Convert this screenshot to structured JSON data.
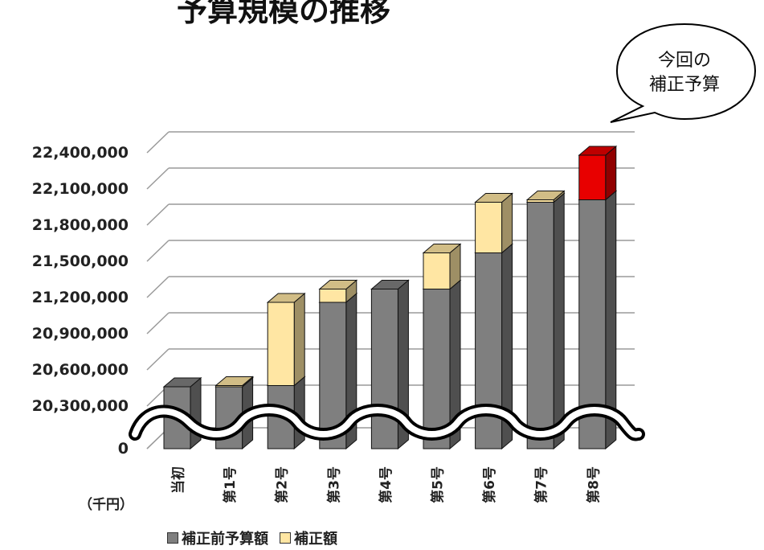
{
  "title": "予算規模の推移",
  "unit_label": "（千円）",
  "callout": {
    "lines": [
      "今回の",
      "補正予算"
    ]
  },
  "chart_data": {
    "type": "bar",
    "stacked": true,
    "categories": [
      "当初",
      "第1号",
      "第2号",
      "第3号",
      "第4号",
      "第5号",
      "第6号",
      "第7号",
      "第8号"
    ],
    "y_tick_labels": [
      "0",
      "20,300,000",
      "20,600,000",
      "20,900,000",
      "21,200,000",
      "21,500,000",
      "21,800,000",
      "22,100,000",
      "22,400,000"
    ],
    "y_ticks": [
      20300000,
      20600000,
      20900000,
      21200000,
      21500000,
      21800000,
      22100000,
      22400000
    ],
    "ylim": [
      20300000,
      22400000
    ],
    "y_axis_break": true,
    "grid": true,
    "series": [
      {
        "name": "補正前予算額",
        "values": [
          20460000,
          20460000,
          20470000,
          21160000,
          21270000,
          21270000,
          21570000,
          21990000,
          22010000
        ]
      },
      {
        "name": "補正額",
        "values": [
          0,
          10000,
          690000,
          110000,
          0,
          300000,
          420000,
          20000,
          370000
        ]
      }
    ],
    "highlight_index": 8,
    "colors": {
      "base": "#7f7f7f",
      "added": "#ffe6a3",
      "highlight": "#e80000"
    },
    "legend_position": "bottom-left"
  }
}
